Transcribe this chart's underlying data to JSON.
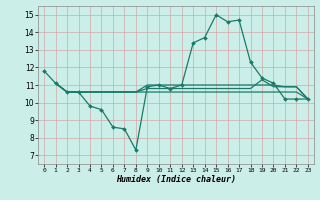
{
  "xlabel": "Humidex (Indice chaleur)",
  "bg_color": "#cceee8",
  "grid_color": "#d0a8a8",
  "line_color": "#1a7a6a",
  "xlim": [
    -0.5,
    23.5
  ],
  "ylim": [
    6.5,
    15.5
  ],
  "xticks": [
    0,
    1,
    2,
    3,
    4,
    5,
    6,
    7,
    8,
    9,
    10,
    11,
    12,
    13,
    14,
    15,
    16,
    17,
    18,
    19,
    20,
    21,
    22,
    23
  ],
  "yticks": [
    7,
    8,
    9,
    10,
    11,
    12,
    13,
    14,
    15
  ],
  "line1_x": [
    0,
    1,
    2,
    3,
    4,
    5,
    6,
    7,
    8,
    9,
    10,
    11,
    12,
    13,
    14,
    15,
    16,
    17,
    18,
    19,
    20,
    21,
    22,
    23
  ],
  "line1_y": [
    11.8,
    11.1,
    10.6,
    10.6,
    9.8,
    9.6,
    8.6,
    8.5,
    7.3,
    10.9,
    11.0,
    10.8,
    11.0,
    13.4,
    13.7,
    15.0,
    14.6,
    14.7,
    12.3,
    11.4,
    11.1,
    10.2,
    10.2,
    10.2
  ],
  "line2_x": [
    1,
    2,
    3,
    4,
    5,
    6,
    7,
    8,
    9,
    10,
    11,
    12,
    13,
    14,
    15,
    16,
    17,
    18,
    19,
    20,
    21,
    22,
    23
  ],
  "line2_y": [
    11.1,
    10.6,
    10.6,
    10.6,
    10.6,
    10.6,
    10.6,
    10.6,
    10.6,
    10.6,
    10.6,
    10.6,
    10.6,
    10.6,
    10.6,
    10.6,
    10.6,
    10.6,
    10.6,
    10.6,
    10.6,
    10.6,
    10.2
  ],
  "line3_x": [
    1,
    2,
    3,
    4,
    5,
    6,
    7,
    8,
    9,
    10,
    11,
    12,
    13,
    14,
    15,
    16,
    17,
    18,
    19,
    20,
    21,
    22,
    23
  ],
  "line3_y": [
    11.1,
    10.6,
    10.6,
    10.6,
    10.6,
    10.6,
    10.6,
    10.6,
    10.8,
    10.8,
    10.8,
    10.8,
    10.8,
    10.8,
    10.8,
    10.8,
    10.8,
    10.8,
    11.3,
    10.9,
    10.9,
    10.9,
    10.2
  ],
  "line4_x": [
    1,
    2,
    3,
    4,
    5,
    6,
    7,
    8,
    9,
    10,
    11,
    12,
    13,
    14,
    15,
    16,
    17,
    18,
    19,
    20,
    21,
    22,
    23
  ],
  "line4_y": [
    11.1,
    10.6,
    10.6,
    10.6,
    10.6,
    10.6,
    10.6,
    10.6,
    11.0,
    11.0,
    11.0,
    11.0,
    11.0,
    11.0,
    11.0,
    11.0,
    11.0,
    11.0,
    11.0,
    11.0,
    10.9,
    10.9,
    10.2
  ]
}
